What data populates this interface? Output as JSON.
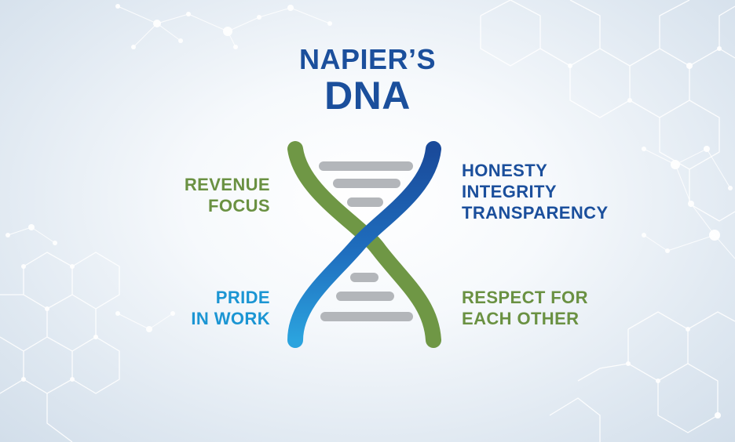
{
  "title": {
    "line1": "NAPIER’S",
    "line2": "DNA"
  },
  "values": {
    "top_left": {
      "line1": "REVENUE",
      "line2": "FOCUS",
      "color": "#6a9142"
    },
    "top_right": {
      "line1": "HONESTY",
      "line2": "INTEGRITY",
      "line3": "TRANSPARENCY",
      "color": "#1b4f9c"
    },
    "bottom_left": {
      "line1": "PRIDE",
      "line2": "IN WORK",
      "color": "#1b95d3"
    },
    "bottom_right": {
      "line1": "RESPECT FOR",
      "line2": "EACH OTHER",
      "color": "#6a9142"
    }
  },
  "colors": {
    "green_strand": "#6f9745",
    "blue_strand_dark": "#1a4a9a",
    "blue_strand_light": "#2ba3de",
    "rungs": "#b3b6ba"
  }
}
